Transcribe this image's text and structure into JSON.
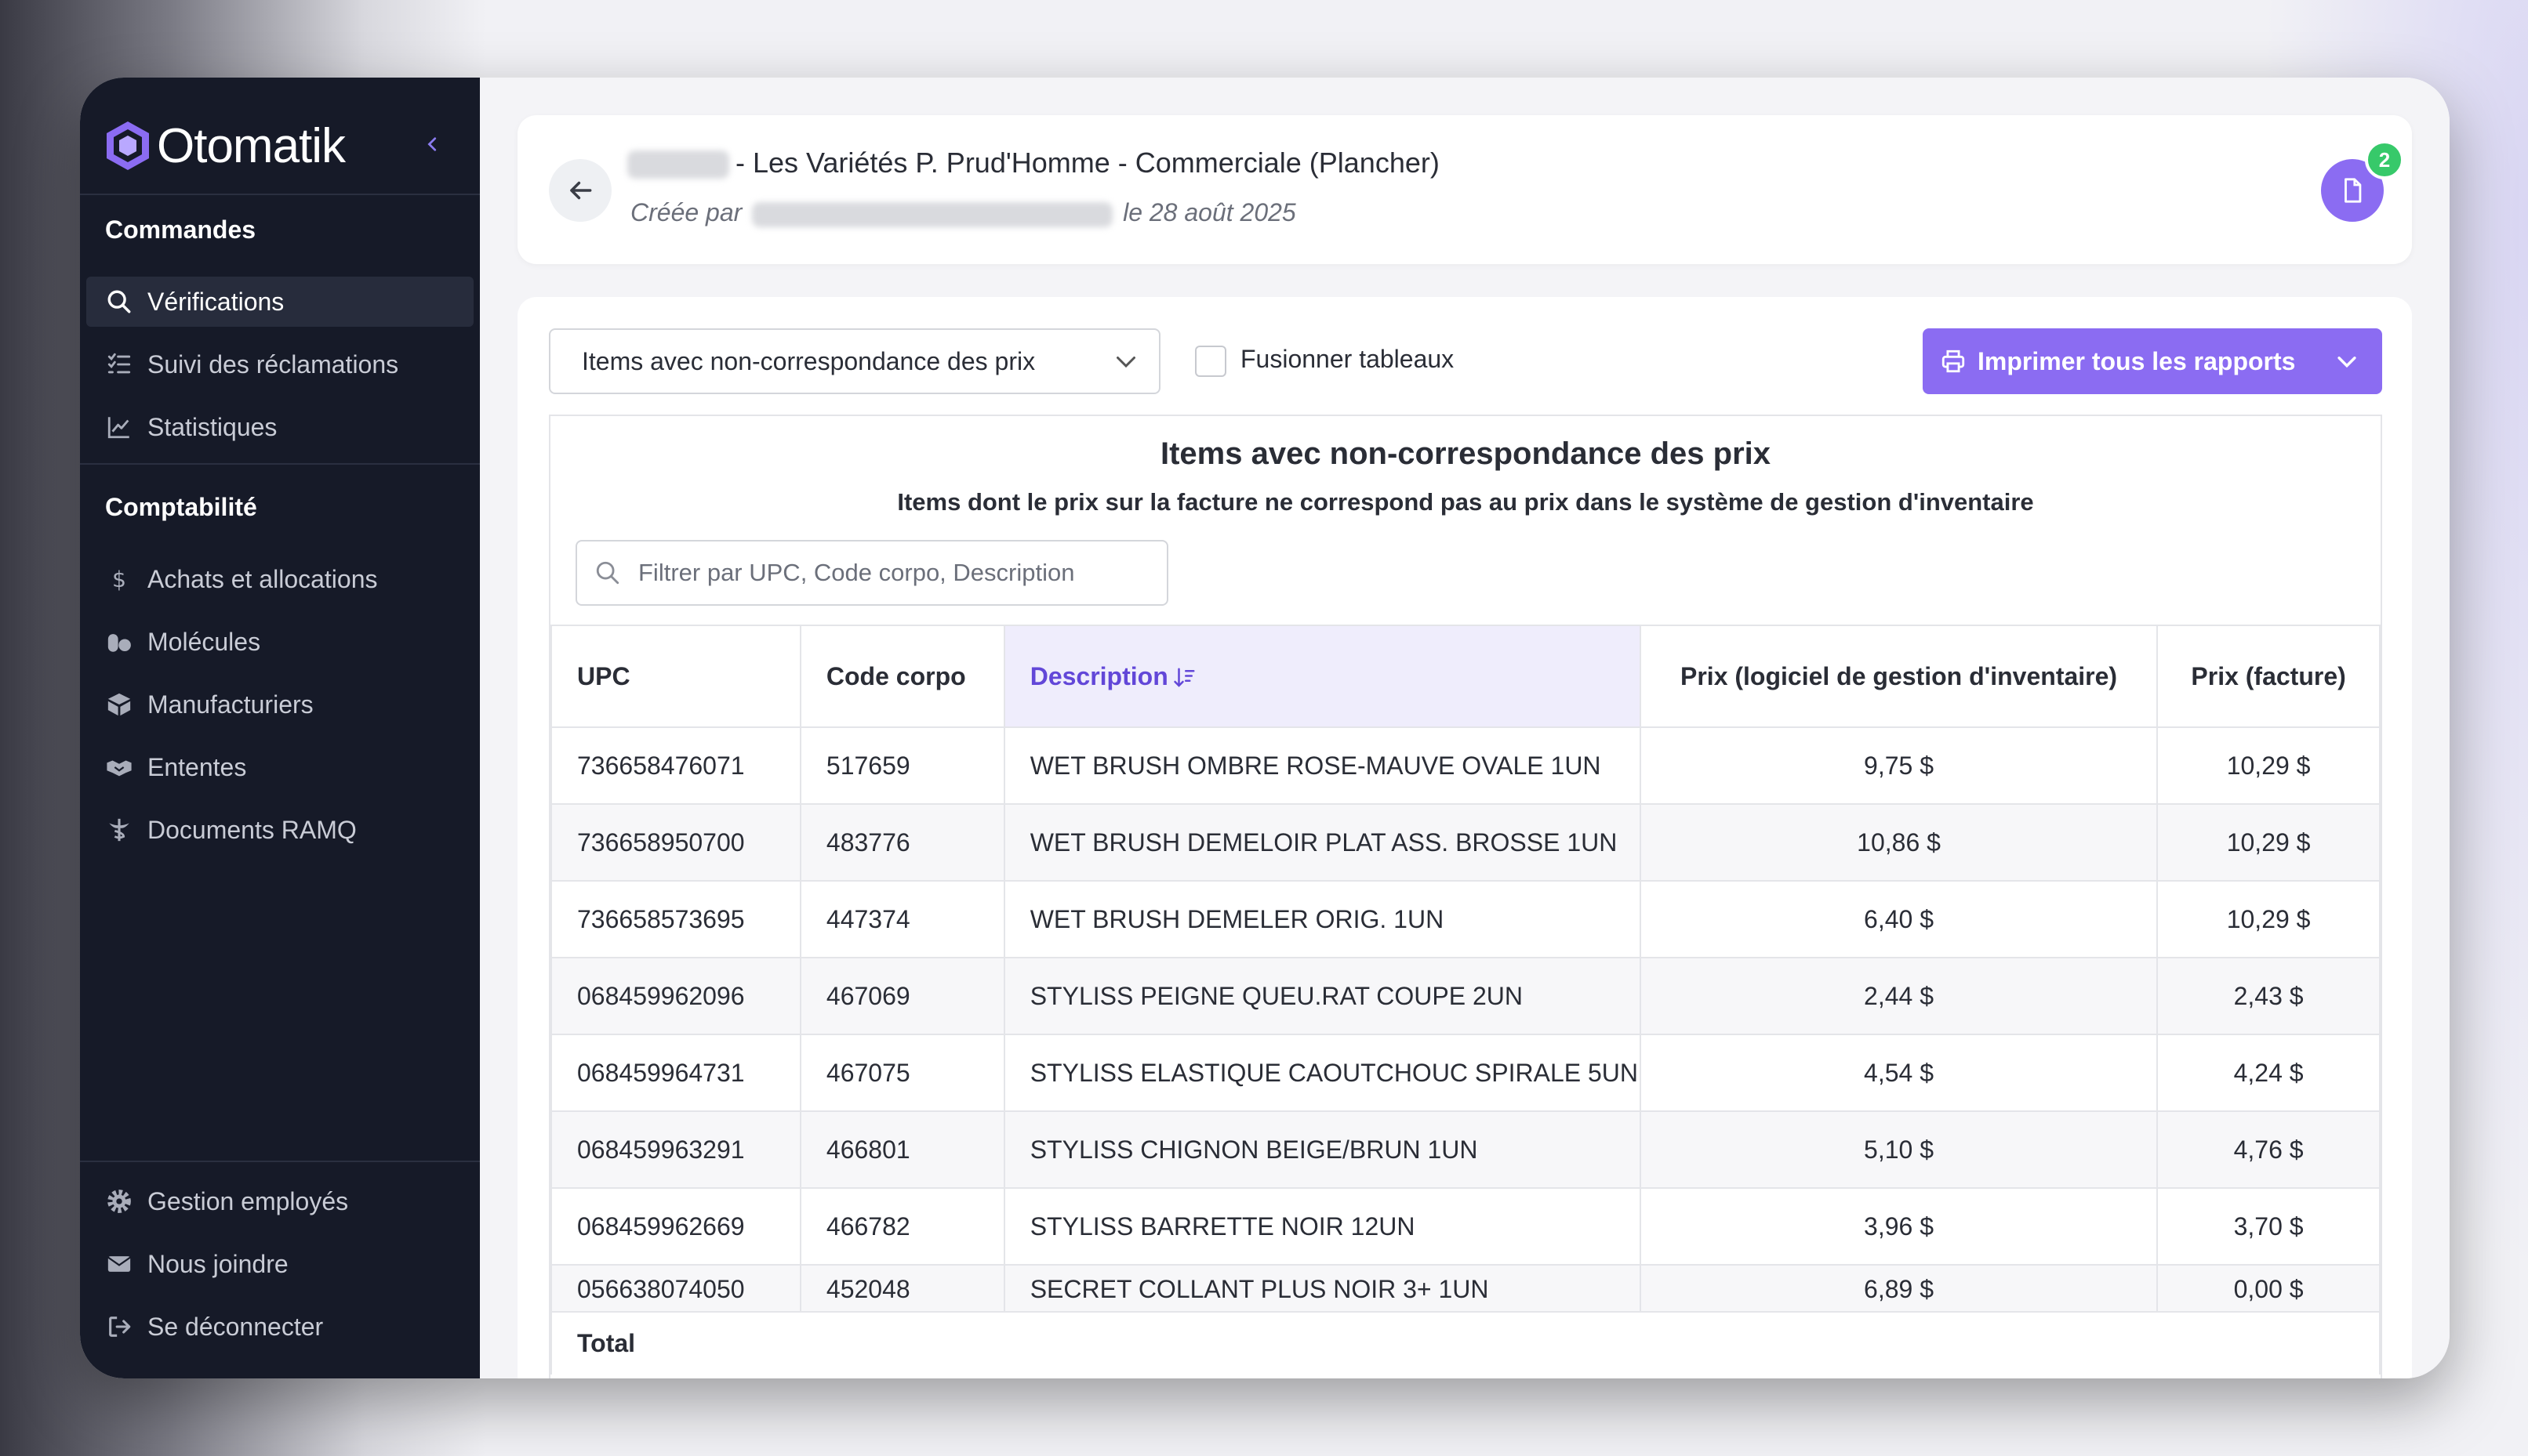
{
  "app": {
    "name": "Otomatik",
    "colors": {
      "accent": "#8b6cf2",
      "sidebar": "#161a28",
      "badge": "#37c96a"
    }
  },
  "sidebar": {
    "sections": [
      {
        "title": "Commandes",
        "items": [
          {
            "label": "Vérifications",
            "icon": "search-icon",
            "active": true
          },
          {
            "label": "Suivi des réclamations",
            "icon": "list-check-icon"
          },
          {
            "label": "Statistiques",
            "icon": "chart-line-icon"
          }
        ]
      },
      {
        "title": "Comptabilité",
        "items": [
          {
            "label": "Achats et allocations",
            "icon": "dollar-icon"
          },
          {
            "label": "Molécules",
            "icon": "pills-icon"
          },
          {
            "label": "Manufacturiers",
            "icon": "box-icon"
          },
          {
            "label": "Ententes",
            "icon": "handshake-icon"
          },
          {
            "label": "Documents RAMQ",
            "icon": "caduceus-icon"
          }
        ]
      }
    ],
    "footer": [
      {
        "label": "Gestion employés",
        "icon": "gear-icon"
      },
      {
        "label": "Nous joindre",
        "icon": "envelope-icon"
      },
      {
        "label": "Se déconnecter",
        "icon": "logout-icon"
      }
    ]
  },
  "header": {
    "title": "- Les Variétés P. Prud'Homme - Commerciale (Plancher)",
    "created_prefix": "Créée par",
    "created_suffix": "le 28 août 2025",
    "badge_count": "2"
  },
  "toolbar": {
    "report_select": "Items avec non-correspondance des prix",
    "merge_label": "Fusionner tableaux",
    "print_label": "Imprimer tous les rapports"
  },
  "report": {
    "title": "Items avec non-correspondance des prix",
    "subtitle": "Items dont le prix sur la facture ne correspond pas au prix dans le système de gestion d'inventaire",
    "filter_placeholder": "Filtrer par UPC, Code corpo, Description",
    "columns": [
      "UPC",
      "Code corpo",
      "Description",
      "Prix (logiciel de gestion d'inventaire)",
      "Prix (facture)"
    ],
    "rows": [
      [
        "736658476071",
        "517659",
        "WET BRUSH OMBRE ROSE-MAUVE OVALE 1UN",
        "9,75 $",
        "10,29 $"
      ],
      [
        "736658950700",
        "483776",
        "WET BRUSH DEMELOIR PLAT ASS. BROSSE 1UN",
        "10,86 $",
        "10,29 $"
      ],
      [
        "736658573695",
        "447374",
        "WET BRUSH DEMELER ORIG. 1UN",
        "6,40 $",
        "10,29 $"
      ],
      [
        "068459962096",
        "467069",
        "STYLISS PEIGNE QUEU.RAT COUPE 2UN",
        "2,44 $",
        "2,43 $"
      ],
      [
        "068459964731",
        "467075",
        "STYLISS ELASTIQUE CAOUTCHOUC SPIRALE 5UN",
        "4,54 $",
        "4,24 $"
      ],
      [
        "068459963291",
        "466801",
        "STYLISS CHIGNON BEIGE/BRUN 1UN",
        "5,10 $",
        "4,76 $"
      ],
      [
        "068459962669",
        "466782",
        "STYLISS BARRETTE NOIR 12UN",
        "3,96 $",
        "3,70 $"
      ],
      [
        "056638074050",
        "452048",
        "SECRET COLLANT PLUS NOIR 3+ 1UN",
        "6,89 $",
        "0,00 $"
      ]
    ],
    "total_label": "Total"
  }
}
